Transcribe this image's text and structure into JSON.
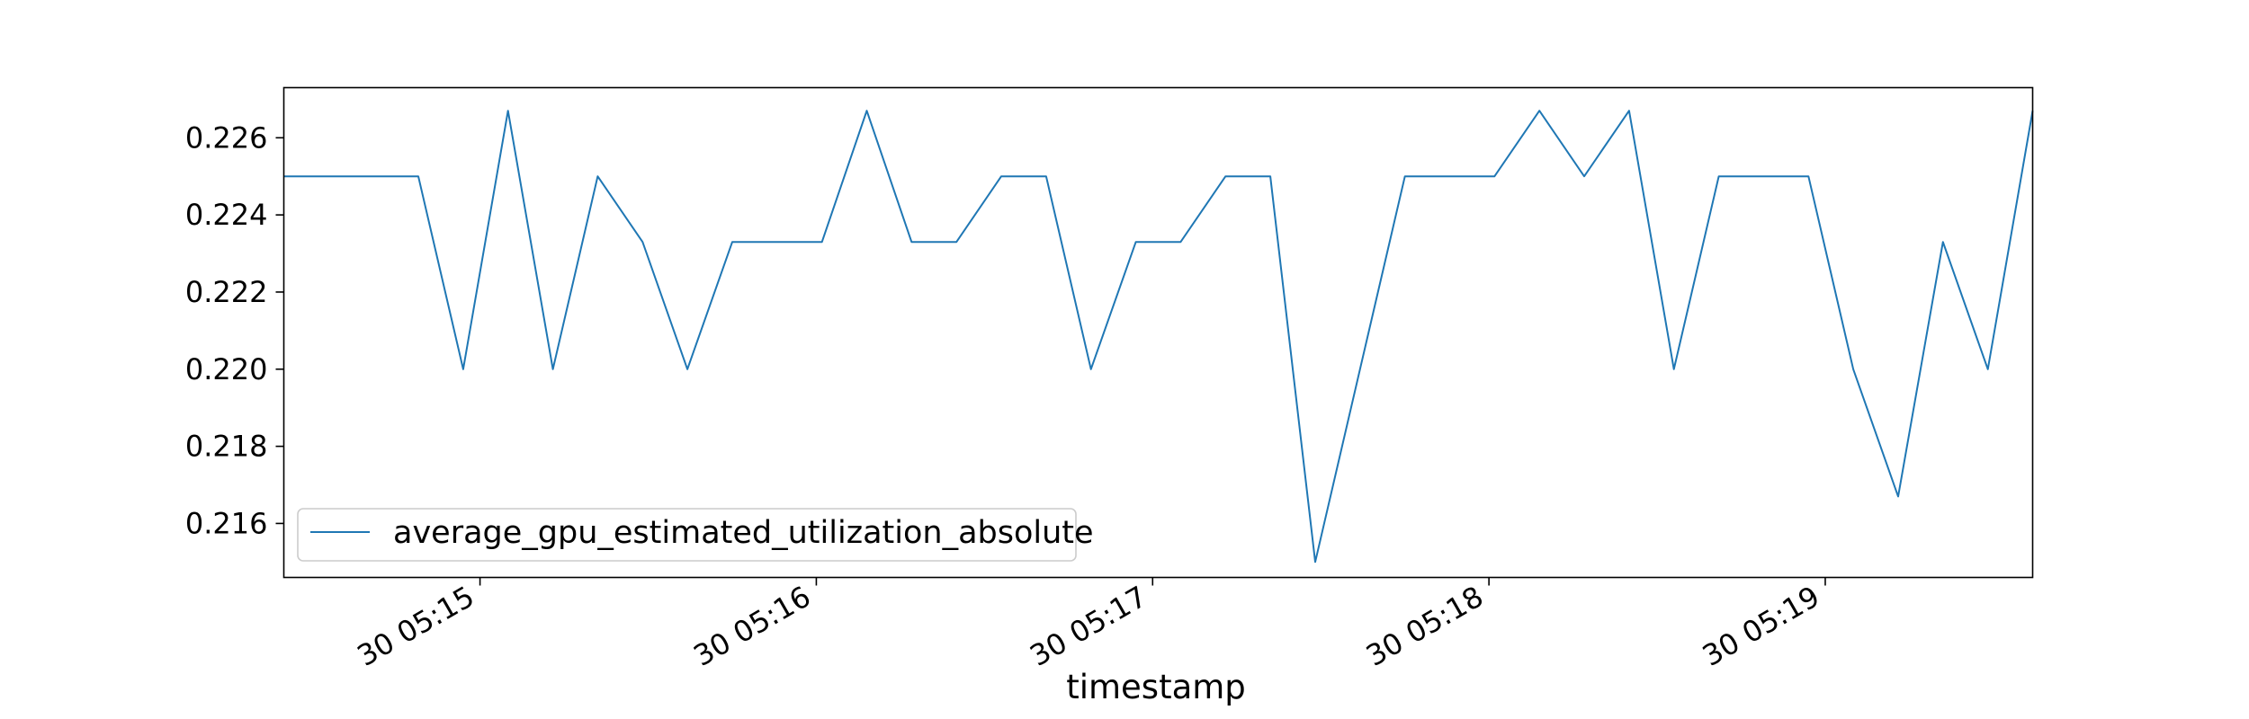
{
  "chart_data": {
    "type": "line",
    "xlabel": "timestamp",
    "ylabel": "",
    "title": "",
    "x": [
      "05:14:25",
      "05:14:33",
      "05:14:41",
      "05:14:49",
      "05:14:57",
      "05:15:05",
      "05:15:13",
      "05:15:21",
      "05:15:29",
      "05:15:37",
      "05:15:45",
      "05:15:53",
      "05:16:01",
      "05:16:09",
      "05:16:17",
      "05:16:25",
      "05:16:33",
      "05:16:41",
      "05:16:49",
      "05:16:57",
      "05:17:05",
      "05:17:13",
      "05:17:21",
      "05:17:29",
      "05:17:37",
      "05:17:45",
      "05:17:53",
      "05:18:01",
      "05:18:09",
      "05:18:17",
      "05:18:25",
      "05:18:33",
      "05:18:41",
      "05:18:49",
      "05:18:57",
      "05:19:05",
      "05:19:13",
      "05:19:21",
      "05:19:29",
      "05:19:37"
    ],
    "series": [
      {
        "name": "average_gpu_estimated_utilization_absolute",
        "color": "#1f77b4",
        "values": [
          0.225,
          0.225,
          0.225,
          0.225,
          0.22,
          0.2267,
          0.22,
          0.225,
          0.2233,
          0.22,
          0.2233,
          0.2233,
          0.2233,
          0.2267,
          0.2233,
          0.2233,
          0.225,
          0.225,
          0.22,
          0.2233,
          0.2233,
          0.225,
          0.225,
          0.215,
          0.22,
          0.225,
          0.225,
          0.225,
          0.2267,
          0.225,
          0.2267,
          0.22,
          0.225,
          0.225,
          0.225,
          0.22,
          0.2167,
          0.2233,
          0.22,
          0.2267
        ]
      }
    ],
    "ylim": [
      0.2146,
      0.2273
    ],
    "yticks": [
      "0.216",
      "0.218",
      "0.220",
      "0.222",
      "0.224",
      "0.226"
    ],
    "xtick_labels": [
      "30 05:15",
      "30 05:16",
      "30 05:17",
      "30 05:18",
      "30 05:19"
    ],
    "legend_position": "lower-left",
    "grid": false
  }
}
